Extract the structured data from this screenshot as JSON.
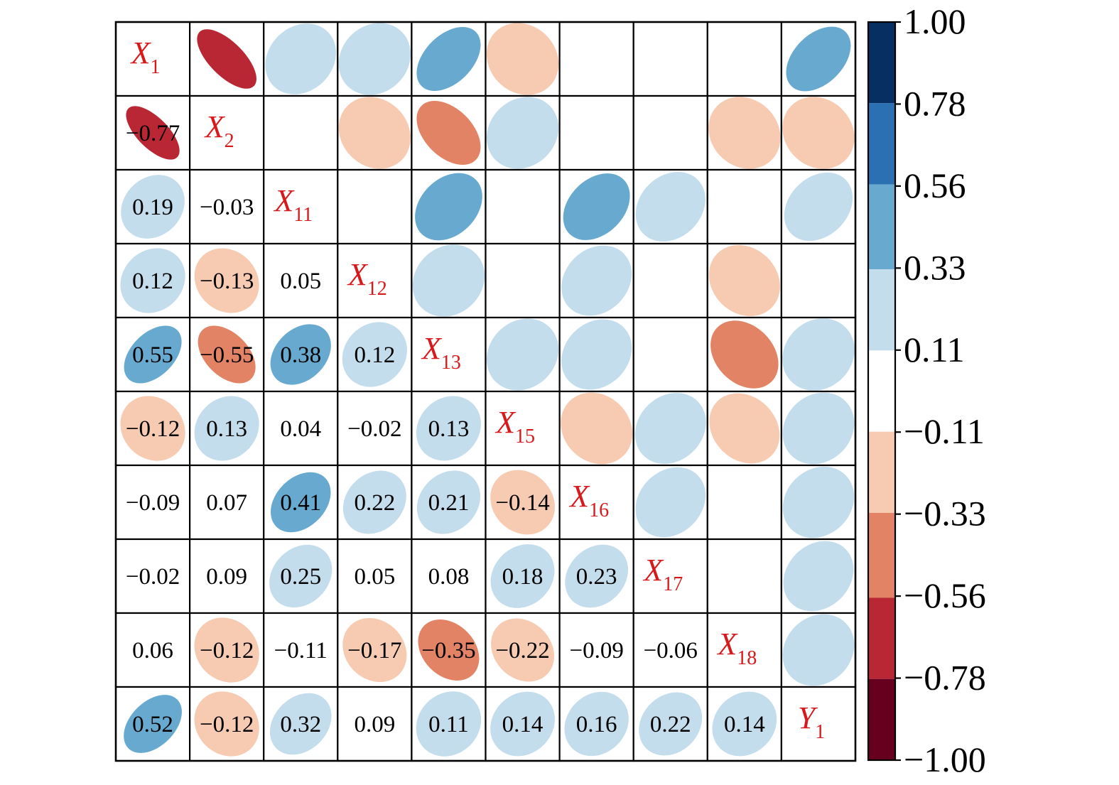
{
  "chart_data": {
    "type": "heatmap",
    "style": "correlation-matrix",
    "lower_triangle": "numbers",
    "upper_triangle": "ellipses",
    "variables": [
      {
        "base": "X",
        "sub": "1"
      },
      {
        "base": "X",
        "sub": "2"
      },
      {
        "base": "X",
        "sub": "11"
      },
      {
        "base": "X",
        "sub": "12"
      },
      {
        "base": "X",
        "sub": "13"
      },
      {
        "base": "X",
        "sub": "15"
      },
      {
        "base": "X",
        "sub": "16"
      },
      {
        "base": "X",
        "sub": "17"
      },
      {
        "base": "X",
        "sub": "18"
      },
      {
        "base": "Y",
        "sub": "1"
      }
    ],
    "matrix": [
      [
        1,
        -0.77,
        0.19,
        0.12,
        0.55,
        -0.12,
        -0.09,
        -0.02,
        0.06,
        0.52
      ],
      [
        -0.77,
        1,
        -0.03,
        -0.13,
        -0.55,
        0.13,
        0.07,
        0.09,
        -0.12,
        -0.12
      ],
      [
        0.19,
        -0.03,
        1,
        0.05,
        0.38,
        0.04,
        0.41,
        0.25,
        -0.11,
        0.32
      ],
      [
        0.12,
        -0.13,
        0.05,
        1,
        0.12,
        -0.02,
        0.22,
        0.05,
        -0.17,
        0.09
      ],
      [
        0.55,
        -0.55,
        0.38,
        0.12,
        1,
        0.13,
        0.21,
        0.08,
        -0.35,
        0.11
      ],
      [
        -0.12,
        0.13,
        0.04,
        -0.02,
        0.13,
        1,
        -0.14,
        0.18,
        -0.22,
        0.14
      ],
      [
        -0.09,
        0.07,
        0.41,
        0.22,
        0.21,
        -0.14,
        1,
        0.23,
        -0.09,
        0.16
      ],
      [
        -0.02,
        0.09,
        0.25,
        0.05,
        0.08,
        0.18,
        0.23,
        1,
        -0.06,
        0.22
      ],
      [
        0.06,
        -0.12,
        -0.11,
        -0.17,
        -0.35,
        -0.22,
        -0.09,
        -0.06,
        1,
        0.14
      ],
      [
        0.52,
        -0.12,
        0.32,
        0.09,
        0.11,
        0.14,
        0.16,
        0.22,
        0.14,
        1
      ]
    ],
    "colorbar": {
      "ticks": [
        "1.00",
        "0.78",
        "0.56",
        "0.33",
        "0.11",
        "−0.11",
        "−0.33",
        "−0.56",
        "−0.78",
        "−1.00"
      ],
      "range": [
        -1,
        1
      ],
      "bins": [
        {
          "from": 0.78,
          "to": 1.0,
          "color": "#053061"
        },
        {
          "from": 0.56,
          "to": 0.78,
          "color": "#2a70b2"
        },
        {
          "from": 0.33,
          "to": 0.56,
          "color": "#67a9cf"
        },
        {
          "from": 0.11,
          "to": 0.33,
          "color": "#c3dded"
        },
        {
          "from": -0.11,
          "to": 0.11,
          "color": "#ffffff"
        },
        {
          "from": -0.33,
          "to": -0.11,
          "color": "#f7cbb1"
        },
        {
          "from": -0.56,
          "to": -0.33,
          "color": "#e38366"
        },
        {
          "from": -0.78,
          "to": -0.56,
          "color": "#b92634"
        },
        {
          "from": -1.0,
          "to": -0.78,
          "color": "#67001f"
        }
      ]
    }
  }
}
